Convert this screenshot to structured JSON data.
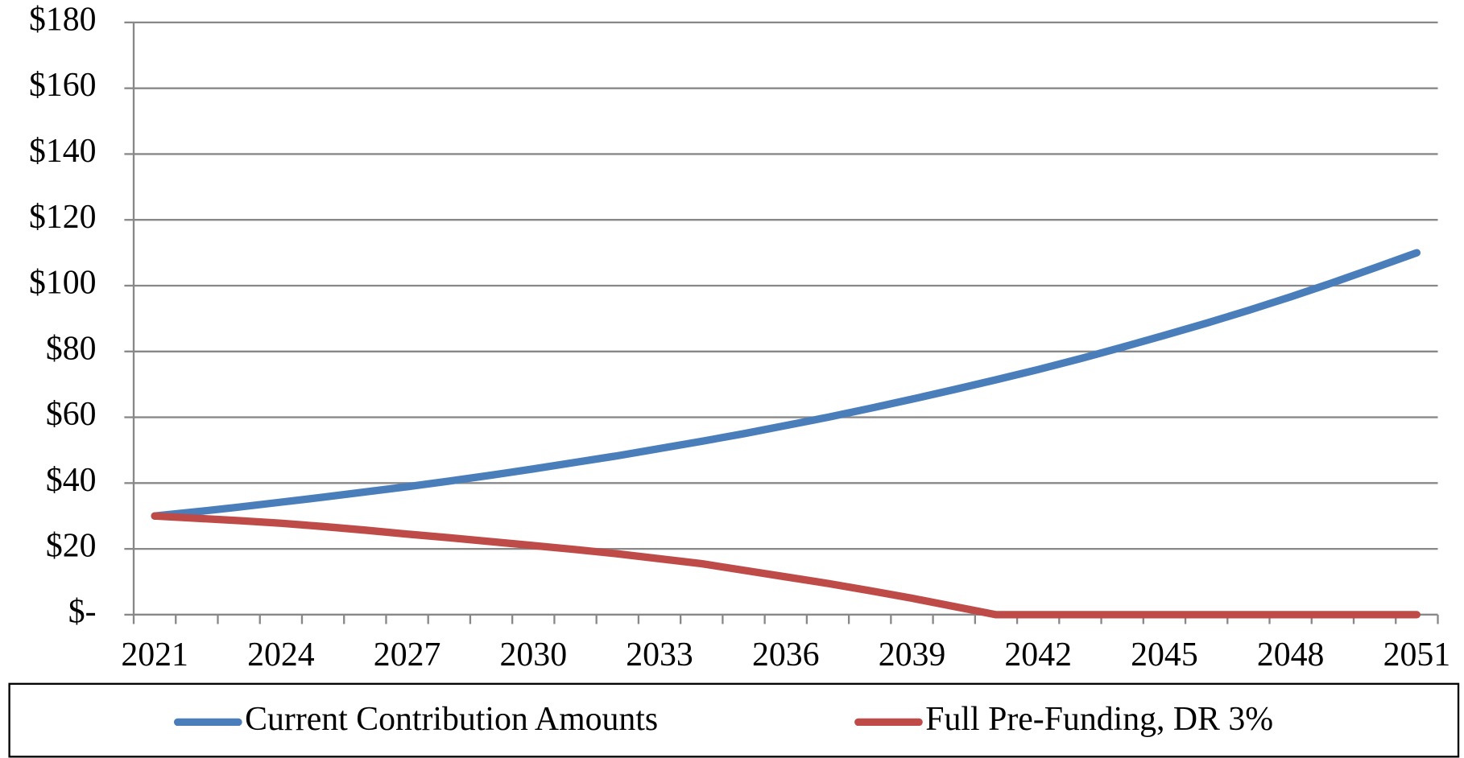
{
  "chart_data": {
    "type": "line",
    "categories": [
      "2021",
      null,
      null,
      "2024",
      null,
      null,
      "2027",
      null,
      null,
      "2030",
      null,
      null,
      "2033",
      null,
      null,
      "2036",
      null,
      null,
      "2039",
      null,
      null,
      "2042",
      null,
      null,
      "2045",
      null,
      null,
      "2048",
      null,
      null,
      "2051"
    ],
    "series": [
      {
        "name": "Current Contribution Amounts",
        "color": "#4a7ebb",
        "values": [
          30.0,
          31.3,
          32.7,
          34.2,
          35.7,
          37.3,
          38.9,
          40.6,
          42.4,
          44.3,
          46.3,
          48.3,
          50.5,
          52.7,
          55.0,
          57.5,
          60.0,
          62.7,
          65.5,
          68.4,
          71.4,
          74.5,
          77.8,
          81.3,
          84.9,
          88.6,
          92.5,
          96.6,
          100.9,
          105.4,
          110.0
        ]
      },
      {
        "name": "Full Pre-Funding, DR 3%",
        "color": "#be4b48",
        "values": [
          30.0,
          29.3,
          28.6,
          27.8,
          26.8,
          25.7,
          24.5,
          23.4,
          22.2,
          21.0,
          19.8,
          18.5,
          17.0,
          15.5,
          13.5,
          11.5,
          9.5,
          7.3,
          5.0,
          2.5,
          0,
          0,
          0,
          0,
          0,
          0,
          0,
          0,
          0,
          0,
          0
        ]
      }
    ],
    "ylim": [
      0,
      180
    ],
    "yticks": [
      {
        "value": 0,
        "label": "$-"
      },
      {
        "value": 20,
        "label": "$20"
      },
      {
        "value": 40,
        "label": "$40"
      },
      {
        "value": 60,
        "label": "$60"
      },
      {
        "value": 80,
        "label": "$80"
      },
      {
        "value": 100,
        "label": "$100"
      },
      {
        "value": 120,
        "label": "$120"
      },
      {
        "value": 140,
        "label": "$140"
      },
      {
        "value": 160,
        "label": "$160"
      },
      {
        "value": 180,
        "label": "$180"
      }
    ],
    "grid": true,
    "legend": "bottom"
  }
}
